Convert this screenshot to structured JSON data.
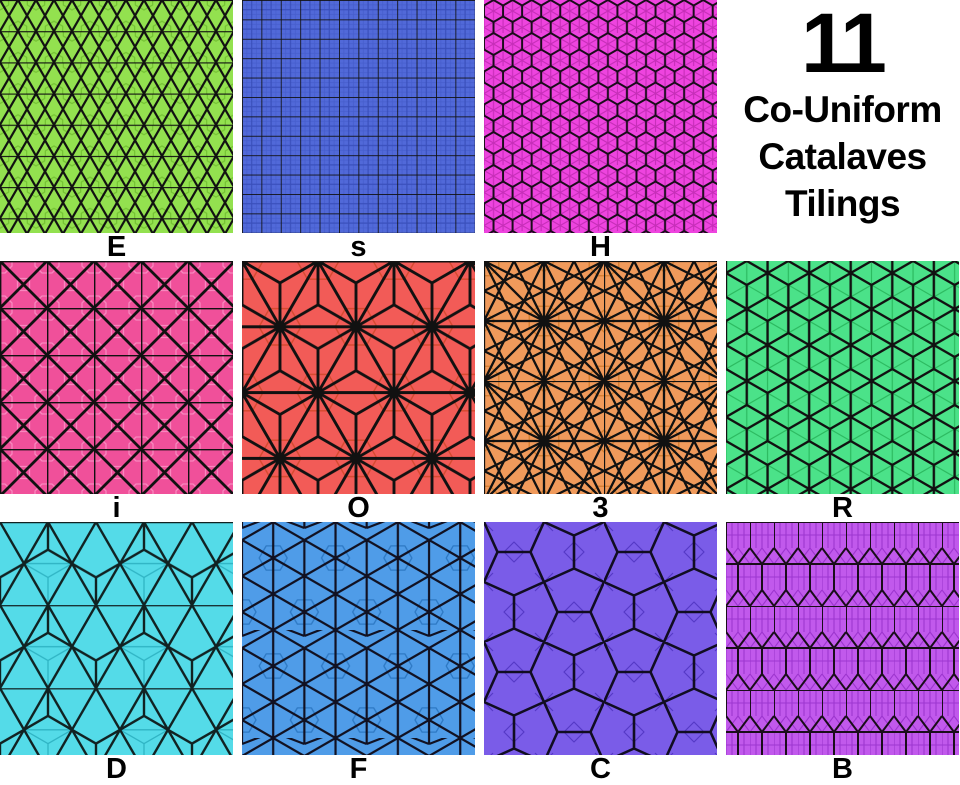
{
  "title": {
    "number": "11",
    "lines": [
      "Co-Uniform",
      "Catalaves",
      "Tilings"
    ]
  },
  "colors": {
    "background": "#ffffff",
    "text": "#000000",
    "line": "#111111"
  },
  "tilings": [
    {
      "label": "E",
      "pattern": "triangular",
      "fill": "#93E14F",
      "faint": "#76C335",
      "line": "#111111"
    },
    {
      "label": "s",
      "pattern": "square",
      "fill": "#5169D9",
      "faint": "#3A50BC",
      "line": "#111111"
    },
    {
      "label": "H",
      "pattern": "hexagonal",
      "fill": "#EE44DF",
      "faint": "#C62EB8",
      "line": "#1a0b1a"
    },
    {
      "label": "i",
      "pattern": "tetrakis-square",
      "fill": "#F0509A",
      "faint": "#F887BE",
      "line": "#111111"
    },
    {
      "label": "O",
      "pattern": "triakis-triangular",
      "fill": "#F25B57",
      "faint": "#D64A30",
      "line": "#111111"
    },
    {
      "label": "3",
      "pattern": "kisrhombille-star",
      "fill": "#F09A5B",
      "faint": "#D57D2E",
      "line": "#111111"
    },
    {
      "label": "R",
      "pattern": "rhombille",
      "fill": "#4BE289",
      "faint": "#2CBA60",
      "line": "#111111"
    },
    {
      "label": "D",
      "pattern": "deltoidal-trihexagonal",
      "fill": "#54DBE8",
      "faint": "#2FB4C4",
      "line": "#112222"
    },
    {
      "label": "F",
      "pattern": "floret-pentagonal",
      "fill": "#4F9CE8",
      "faint": "#2E79C4",
      "line": "#111122"
    },
    {
      "label": "C",
      "pattern": "cairo-pentagonal",
      "fill": "#7A5CE8",
      "faint": "#5538C6",
      "line": "#110d22"
    },
    {
      "label": "B",
      "pattern": "prismatic-pentagonal",
      "fill": "#C159EC",
      "faint": "#9D36CF",
      "line": "#1a0d1a"
    }
  ]
}
